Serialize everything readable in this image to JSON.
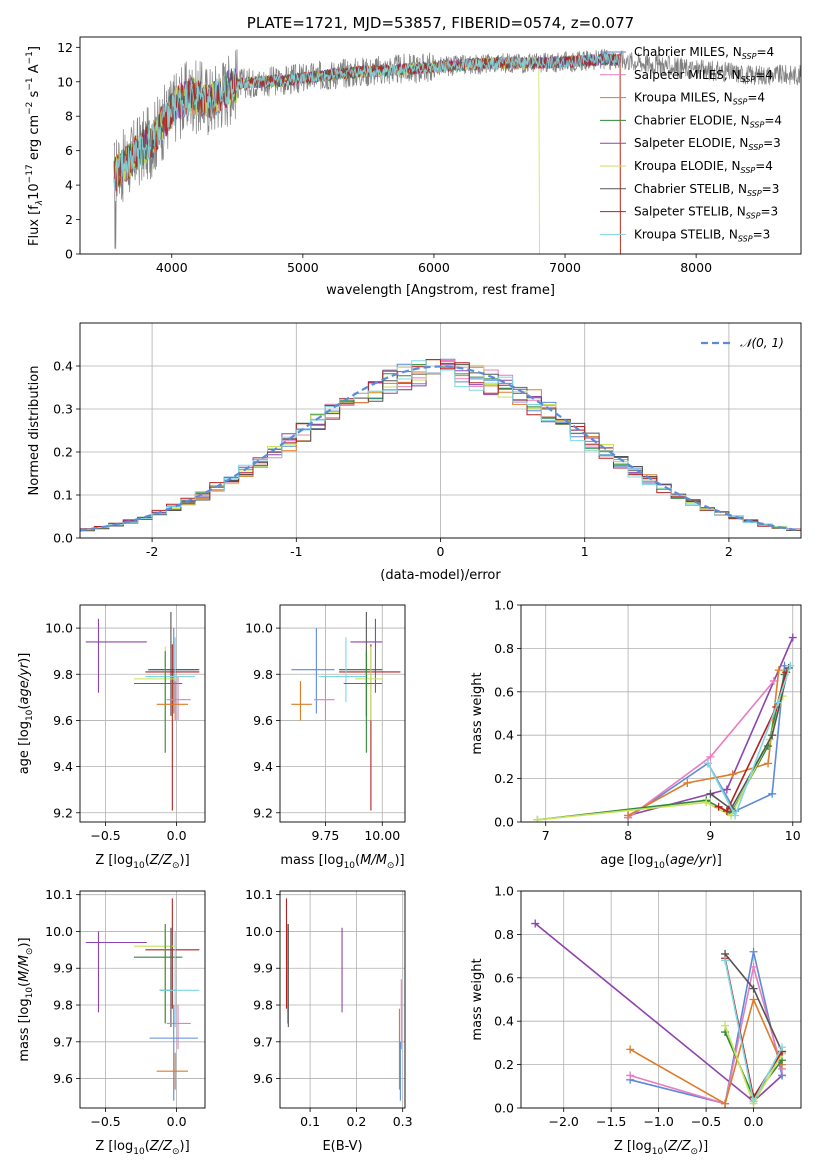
{
  "colors": {
    "Chabrier MILES": "#5b8bd9",
    "Salpeter MILES": "#e97cbf",
    "Kroupa MILES": "#dd7c2a",
    "Chabrier ELODIE": "#2f8a3a",
    "Salpeter ELODIE": "#8e44ad",
    "Kroupa ELODIE": "#c8e35a",
    "Chabrier STELIB": "#555555",
    "Salpeter STELIB": "#b22222",
    "Kroupa STELIB": "#7fd8e0",
    "gauss": "#5b8bd9",
    "spectrum": "#808080"
  },
  "chart_data": [
    {
      "id": "spectrum",
      "type": "line",
      "title": "PLATE=1721, MJD=53857, FIBERID=0574, z=0.077",
      "xlabel": "wavelength [Angstrom, rest frame]",
      "ylabel_parts": [
        "Flux [f",
        "λ",
        "10",
        "−17",
        " erg cm",
        "−2",
        " s",
        "−1",
        " A",
        "−1",
        "]"
      ],
      "xlim": [
        3300,
        8800
      ],
      "ylim": [
        0,
        12.6
      ],
      "xticks": [
        4000,
        5000,
        6000,
        7000,
        8000
      ],
      "yticks": [
        0,
        2,
        4,
        6,
        8,
        10,
        12
      ],
      "grid": false,
      "legend_position": "right",
      "continuum": {
        "x": [
          3560,
          3650,
          3750,
          3850,
          3950,
          4050,
          4150,
          4300,
          4400,
          4500,
          4700,
          4900,
          5100,
          5300,
          5500,
          5700,
          5900,
          6100,
          6300,
          6500,
          6700,
          6900,
          7100,
          7300,
          7420,
          7600,
          7800,
          8000,
          8200,
          8400
        ],
        "y": [
          4.6,
          5.2,
          6.0,
          6.6,
          7.8,
          8.8,
          9.2,
          8.9,
          9.5,
          9.9,
          10.0,
          10.1,
          10.3,
          10.5,
          10.6,
          10.7,
          10.8,
          10.9,
          11.0,
          11.1,
          11.1,
          11.1,
          11.2,
          11.3,
          11.3,
          11.1,
          10.9,
          10.7,
          10.6,
          10.4
        ]
      },
      "models_end": 7420,
      "legend": [
        {
          "label": "Chabrier MILES, N",
          "sub": "SSP",
          "suffix": "=4"
        },
        {
          "label": "Salpeter MILES, N",
          "sub": "SSP",
          "suffix": "=4"
        },
        {
          "label": "Kroupa MILES, N",
          "sub": "SSP",
          "suffix": "=4"
        },
        {
          "label": "Chabrier ELODIE, N",
          "sub": "SSP",
          "suffix": "=4"
        },
        {
          "label": "Salpeter ELODIE, N",
          "sub": "SSP",
          "suffix": "=3"
        },
        {
          "label": "Kroupa ELODIE, N",
          "sub": "SSP",
          "suffix": "=4"
        },
        {
          "label": "Chabrier STELIB, N",
          "sub": "SSP",
          "suffix": "=3"
        },
        {
          "label": "Salpeter STELIB, N",
          "sub": "SSP",
          "suffix": "=3"
        },
        {
          "label": "Kroupa STELIB, N",
          "sub": "SSP",
          "suffix": "=3"
        }
      ]
    },
    {
      "id": "histogram",
      "type": "line",
      "xlabel": "(data-model)/error",
      "ylabel": "Normed distribution",
      "xlim": [
        -2.5,
        2.5
      ],
      "ylim": [
        0,
        0.5
      ],
      "xticks": [
        -2,
        -1,
        0,
        1,
        2
      ],
      "yticks": [
        0.0,
        0.1,
        0.2,
        0.3,
        0.4
      ],
      "ytick_labels": [
        "0.0",
        "0.1",
        "0.2",
        "0.3",
        "0.4"
      ],
      "grid": true,
      "bin_width": 0.1,
      "legend": "𝒩(0, 1)",
      "legend_position": "top-right"
    },
    {
      "id": "age_vs_Z",
      "type": "scatter",
      "xlabel_text": "Z [log",
      "xlabel_sub": "10",
      "xlabel_tail": "(Z/Z",
      "ylabel_text": "age  [log",
      "ylabel_sub": "10",
      "ylabel_tail": "(age/yr)]",
      "xlim": [
        -0.68,
        0.2
      ],
      "ylim": [
        9.16,
        10.1
      ],
      "xticks": [
        -0.5,
        0.0
      ],
      "xtick_labels": [
        "−0.5",
        "0.0"
      ],
      "yticks": [
        9.2,
        9.4,
        9.6,
        9.8,
        10.0
      ],
      "ytick_labels": [
        "9.2",
        "9.4",
        "9.6",
        "9.8",
        "10.0"
      ],
      "grid": true,
      "points": [
        {
          "model": "Salpeter ELODIE",
          "x": -0.55,
          "y": 9.94,
          "x0": -0.64,
          "x1": -0.21,
          "y0": 9.72,
          "y1": 10.04
        },
        {
          "model": "Chabrier MILES",
          "x": -0.02,
          "y": 9.82,
          "x0": -0.19,
          "x1": 0.15,
          "y0": 9.63,
          "y1": 10.0
        },
        {
          "model": "Chabrier STELIB",
          "x": -0.04,
          "y": 9.82,
          "x0": -0.2,
          "x1": 0.16,
          "y0": 9.62,
          "y1": 10.07
        },
        {
          "model": "Salpeter STELIB",
          "x": -0.03,
          "y": 9.81,
          "x0": -0.22,
          "x1": 0.16,
          "y0": 9.21,
          "y1": 9.93
        },
        {
          "model": "Kroupa STELIB",
          "x": -0.01,
          "y": 9.79,
          "x0": -0.22,
          "x1": 0.13,
          "y0": 9.68,
          "y1": 9.96
        },
        {
          "model": "Kroupa ELODIE",
          "x": -0.08,
          "y": 9.78,
          "x0": -0.3,
          "x1": -0.01,
          "y0": 9.6,
          "y1": 9.92
        },
        {
          "model": "Chabrier ELODIE",
          "x": -0.08,
          "y": 9.76,
          "x0": -0.3,
          "x1": 0.04,
          "y0": 9.46,
          "y1": 9.9
        },
        {
          "model": "Salpeter MILES",
          "x": 0.01,
          "y": 9.69,
          "x0": -0.07,
          "x1": 0.1,
          "y0": 9.6,
          "y1": 9.79
        },
        {
          "model": "Kroupa MILES",
          "x": -0.01,
          "y": 9.67,
          "x0": -0.14,
          "x1": 0.08,
          "y0": 9.6,
          "y1": 9.77
        }
      ]
    },
    {
      "id": "age_vs_mass",
      "type": "scatter",
      "xlabel_text": "mass [log",
      "xlabel_sub": "10",
      "xlabel_tail": "(M/M",
      "xlim": [
        9.55,
        10.1
      ],
      "ylim": [
        9.16,
        10.1
      ],
      "xticks": [
        9.75,
        10.0
      ],
      "xtick_labels": [
        "9.75",
        "10.00"
      ],
      "yticks": [
        9.2,
        9.4,
        9.6,
        9.8,
        10.0
      ],
      "ytick_labels": [
        "9.2",
        "9.4",
        "9.6",
        "9.8",
        "10.0"
      ],
      "grid": true,
      "points": [
        {
          "model": "Salpeter ELODIE",
          "x": 9.97,
          "y": 9.94,
          "x0": 9.86,
          "x1": 10.0,
          "y0": 9.72,
          "y1": 10.04
        },
        {
          "model": "Chabrier MILES",
          "x": 9.71,
          "y": 9.82,
          "x0": 9.6,
          "x1": 9.79,
          "y0": 9.63,
          "y1": 10.0
        },
        {
          "model": "Chabrier STELIB",
          "x": 9.93,
          "y": 9.82,
          "x0": 9.81,
          "x1": 10.0,
          "y0": 9.62,
          "y1": 10.07
        },
        {
          "model": "Salpeter STELIB",
          "x": 9.95,
          "y": 9.81,
          "x0": 9.81,
          "x1": 10.08,
          "y0": 9.21,
          "y1": 9.93
        },
        {
          "model": "Kroupa STELIB",
          "x": 9.84,
          "y": 9.79,
          "x0": 9.72,
          "x1": 9.93,
          "y0": 9.68,
          "y1": 9.96
        },
        {
          "model": "Kroupa ELODIE",
          "x": 9.95,
          "y": 9.78,
          "x0": 9.88,
          "x1": 10.0,
          "y0": 9.6,
          "y1": 9.92
        },
        {
          "model": "Chabrier ELODIE",
          "x": 9.93,
          "y": 9.76,
          "x0": 9.83,
          "x1": 10.0,
          "y0": 9.46,
          "y1": 9.9
        },
        {
          "model": "Salpeter MILES",
          "x": 9.75,
          "y": 9.69,
          "x0": 9.7,
          "x1": 9.79,
          "y0": 9.6,
          "y1": 9.79
        },
        {
          "model": "Kroupa MILES",
          "x": 9.64,
          "y": 9.67,
          "x0": 9.6,
          "x1": 9.69,
          "y0": 9.6,
          "y1": 9.77
        }
      ]
    },
    {
      "id": "massweight_vs_age",
      "type": "line",
      "xlabel_text": "age  [log",
      "xlabel_sub": "10",
      "xlabel_tail": "(age/yr)]",
      "ylabel": "mass weight",
      "xlim": [
        6.7,
        10.1
      ],
      "ylim": [
        0,
        1
      ],
      "xticks": [
        7,
        8,
        9,
        10
      ],
      "yticks": [
        0.0,
        0.2,
        0.4,
        0.6,
        0.8,
        1.0
      ],
      "ytick_labels": [
        "0.0",
        "0.2",
        "0.4",
        "0.6",
        "0.8",
        "1.0"
      ],
      "grid": true,
      "series": [
        {
          "model": "Salpeter ELODIE",
          "x": [
            8.0,
            9.2,
            10.0
          ],
          "y": [
            0.03,
            0.15,
            0.85
          ]
        },
        {
          "model": "Chabrier MILES",
          "x": [
            8.0,
            8.97,
            9.3,
            9.75,
            9.9
          ],
          "y": [
            0.02,
            0.27,
            0.05,
            0.13,
            0.72
          ]
        },
        {
          "model": "Salpeter MILES",
          "x": [
            8.0,
            9.0,
            9.77
          ],
          "y": [
            0.02,
            0.3,
            0.65
          ]
        },
        {
          "model": "Kroupa MILES",
          "x": [
            8.0,
            8.72,
            9.27,
            9.7,
            9.83
          ],
          "y": [
            0.03,
            0.18,
            0.22,
            0.27,
            0.7
          ]
        },
        {
          "model": "Chabrier ELODIE",
          "x": [
            6.9,
            8.95,
            9.25,
            9.7,
            9.9
          ],
          "y": [
            0.01,
            0.1,
            0.04,
            0.35,
            0.68
          ]
        },
        {
          "model": "Kroupa ELODIE",
          "x": [
            6.9,
            8.95,
            9.25,
            9.72,
            9.88
          ],
          "y": [
            0.01,
            0.09,
            0.03,
            0.38,
            0.58
          ]
        },
        {
          "model": "Chabrier STELIB",
          "x": [
            9.0,
            9.25,
            9.75,
            9.95
          ],
          "y": [
            0.13,
            0.06,
            0.4,
            0.71
          ]
        },
        {
          "model": "Salpeter STELIB",
          "x": [
            9.1,
            9.2,
            9.8,
            9.92
          ],
          "y": [
            0.07,
            0.05,
            0.53,
            0.69
          ]
        },
        {
          "model": "Kroupa STELIB",
          "x": [
            8.97,
            9.3,
            9.82,
            9.97
          ],
          "y": [
            0.27,
            0.03,
            0.55,
            0.72
          ]
        }
      ]
    },
    {
      "id": "mass_vs_Z",
      "type": "scatter",
      "xlabel_text": "Z [log",
      "xlabel_sub": "10",
      "xlabel_tail": "(Z/Z",
      "ylabel_text": "mass [log",
      "ylabel_sub": "10",
      "ylabel_tail": "(M/M",
      "xlim": [
        -0.68,
        0.2
      ],
      "ylim": [
        9.52,
        10.11
      ],
      "xticks": [
        -0.5,
        0.0
      ],
      "xtick_labels": [
        "−0.5",
        "0.0"
      ],
      "yticks": [
        9.6,
        9.7,
        9.8,
        9.9,
        10.0,
        10.1
      ],
      "ytick_labels": [
        "9.6",
        "9.7",
        "9.8",
        "9.9",
        "10.0",
        "10.1"
      ],
      "grid": true,
      "points": [
        {
          "model": "Salpeter ELODIE",
          "x": -0.55,
          "y": 9.97,
          "x0": -0.64,
          "x1": -0.21,
          "y0": 9.78,
          "y1": 10.0
        },
        {
          "model": "Salpeter STELIB",
          "x": -0.03,
          "y": 9.95,
          "x0": -0.22,
          "x1": 0.16,
          "y0": 9.79,
          "y1": 10.09
        },
        {
          "model": "Kroupa ELODIE",
          "x": -0.08,
          "y": 9.96,
          "x0": -0.3,
          "x1": -0.01,
          "y0": 9.75,
          "y1": 10.02
        },
        {
          "model": "Chabrier ELODIE",
          "x": -0.08,
          "y": 9.93,
          "x0": -0.3,
          "x1": 0.04,
          "y0": 9.75,
          "y1": 10.02
        },
        {
          "model": "Chabrier STELIB",
          "x": -0.04,
          "y": 9.84,
          "x0": -0.12,
          "x1": 0.0,
          "y0": 9.74,
          "y1": 10.01
        },
        {
          "model": "Kroupa STELIB",
          "x": -0.01,
          "y": 9.84,
          "x0": -0.12,
          "x1": 0.16,
          "y0": 9.74,
          "y1": 10.0
        },
        {
          "model": "Salpeter MILES",
          "x": 0.01,
          "y": 9.75,
          "x0": -0.07,
          "x1": 0.1,
          "y0": 9.68,
          "y1": 9.8
        },
        {
          "model": "Chabrier MILES",
          "x": -0.02,
          "y": 9.71,
          "x0": -0.19,
          "x1": 0.15,
          "y0": 9.54,
          "y1": 9.8
        },
        {
          "model": "Kroupa MILES",
          "x": -0.01,
          "y": 9.62,
          "x0": -0.14,
          "x1": 0.08,
          "y0": 9.57,
          "y1": 9.67
        }
      ]
    },
    {
      "id": "mass_vs_ebv",
      "type": "scatter",
      "xlabel": "E(B-V)",
      "xlim": [
        0.035,
        0.305
      ],
      "ylim": [
        9.52,
        10.11
      ],
      "xticks": [
        0.1,
        0.2,
        0.3
      ],
      "xtick_labels": [
        "0.1",
        "0.2",
        "0.3"
      ],
      "yticks": [
        9.6,
        9.7,
        9.8,
        9.9,
        10.0,
        10.1
      ],
      "ytick_labels": [
        "9.6",
        "9.7",
        "9.8",
        "9.9",
        "10.0",
        "10.1"
      ],
      "grid": true,
      "points": [
        {
          "model": "Salpeter STELIB",
          "x": 0.049,
          "y": 9.95,
          "x0": 0.049,
          "x1": 0.049,
          "y0": 9.79,
          "y1": 10.09
        },
        {
          "model": "Chabrier ELODIE",
          "x": 0.052,
          "y": 9.9,
          "x0": 0.052,
          "x1": 0.052,
          "y0": 9.75,
          "y1": 10.02
        },
        {
          "model": "Chabrier STELIB",
          "x": 0.053,
          "y": 9.88,
          "x0": 0.053,
          "x1": 0.053,
          "y0": 9.74,
          "y1": 10.02
        },
        {
          "model": "Salpeter ELODIE",
          "x": 0.169,
          "y": 9.9,
          "x0": 0.169,
          "x1": 0.169,
          "y0": 9.78,
          "y1": 10.01
        },
        {
          "model": "Kroupa MILES",
          "x": 0.293,
          "y": 9.65,
          "x0": 0.293,
          "x1": 0.293,
          "y0": 9.57,
          "y1": 9.79
        },
        {
          "model": "Salpeter MILES",
          "x": 0.297,
          "y": 9.75,
          "x0": 0.297,
          "x1": 0.297,
          "y0": 9.68,
          "y1": 9.87
        },
        {
          "model": "Chabrier MILES",
          "x": 0.295,
          "y": 9.62,
          "x0": 0.295,
          "x1": 0.295,
          "y0": 9.54,
          "y1": 9.7
        }
      ]
    },
    {
      "id": "massweight_vs_Z",
      "type": "line",
      "xlabel_text": "Z [log",
      "xlabel_sub": "10",
      "xlabel_tail": "(Z/Z",
      "ylabel": "mass weight",
      "xlim": [
        -2.45,
        0.5
      ],
      "ylim": [
        0,
        1
      ],
      "xticks": [
        -2.0,
        -1.5,
        -1.0,
        -0.5,
        0.0
      ],
      "xtick_labels": [
        "−2.0",
        "−1.5",
        "−1.0",
        "−0.5",
        "0.0"
      ],
      "yticks": [
        0.0,
        0.2,
        0.4,
        0.6,
        0.8,
        1.0
      ],
      "ytick_labels": [
        "0.0",
        "0.2",
        "0.4",
        "0.6",
        "0.8",
        "1.0"
      ],
      "grid": true,
      "series": [
        {
          "model": "Salpeter ELODIE",
          "x": [
            -2.3,
            0.0,
            0.3
          ],
          "y": [
            0.85,
            0.03,
            0.15
          ]
        },
        {
          "model": "Chabrier MILES",
          "x": [
            -1.3,
            -0.3,
            0.0,
            0.3
          ],
          "y": [
            0.13,
            0.02,
            0.72,
            0.15
          ]
        },
        {
          "model": "Salpeter MILES",
          "x": [
            -1.3,
            -0.3,
            0.0,
            0.3
          ],
          "y": [
            0.15,
            0.02,
            0.65,
            0.18
          ]
        },
        {
          "model": "Kroupa MILES",
          "x": [
            -1.3,
            -0.3,
            0.0,
            0.3
          ],
          "y": [
            0.27,
            0.02,
            0.5,
            0.2
          ]
        },
        {
          "model": "Chabrier ELODIE",
          "x": [
            -0.3,
            0.0,
            0.3
          ],
          "y": [
            0.35,
            0.05,
            0.22
          ]
        },
        {
          "model": "Kroupa ELODIE",
          "x": [
            -0.3,
            0.0,
            0.3
          ],
          "y": [
            0.38,
            0.02,
            0.25
          ]
        },
        {
          "model": "Chabrier STELIB",
          "x": [
            -0.3,
            0.0,
            0.3
          ],
          "y": [
            0.71,
            0.55,
            0.26
          ]
        },
        {
          "model": "Salpeter STELIB",
          "x": [
            -0.3,
            0.0,
            0.3
          ],
          "y": [
            0.69,
            0.05,
            0.26
          ]
        },
        {
          "model": "Kroupa STELIB",
          "x": [
            -0.3,
            0.0,
            0.3
          ],
          "y": [
            0.68,
            0.03,
            0.28
          ]
        }
      ]
    }
  ]
}
